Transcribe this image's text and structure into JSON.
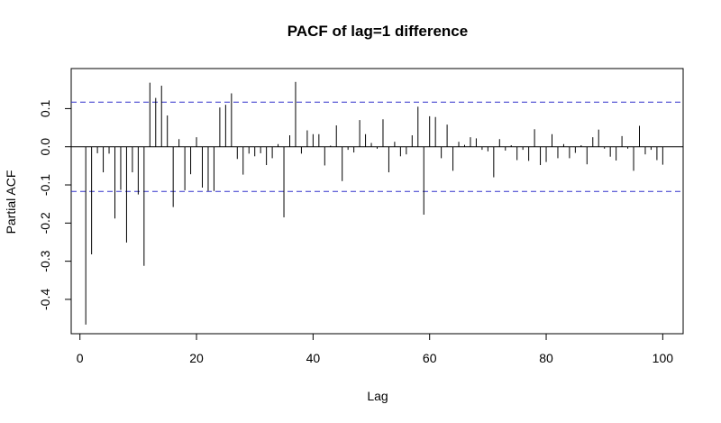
{
  "chart_data": {
    "type": "bar",
    "title": "PACF of lag=1 difference",
    "xlabel": "Lag",
    "ylabel": "Partial ACF",
    "xlim": [
      -1.5,
      103.5
    ],
    "ylim": [
      -0.49,
      0.205
    ],
    "xticks": [
      0,
      20,
      40,
      60,
      80,
      100
    ],
    "yticks": [
      -0.4,
      -0.3,
      -0.2,
      -0.1,
      0.0,
      0.1
    ],
    "ytick_labels": [
      "-0.4",
      "-0.3",
      "-0.2",
      "-0.1",
      "0.0",
      "0.1"
    ],
    "confidence_bound": 0.117,
    "grid": false,
    "colors": {
      "bars": "#000000",
      "confidence": "#3333cc",
      "zero": "#000000"
    },
    "x": [
      1,
      2,
      3,
      4,
      5,
      6,
      7,
      8,
      9,
      10,
      11,
      12,
      13,
      14,
      15,
      16,
      17,
      18,
      19,
      20,
      21,
      22,
      23,
      24,
      25,
      26,
      27,
      28,
      29,
      30,
      31,
      32,
      33,
      34,
      35,
      36,
      37,
      38,
      39,
      40,
      41,
      42,
      43,
      44,
      45,
      46,
      47,
      48,
      49,
      50,
      51,
      52,
      53,
      54,
      55,
      56,
      57,
      58,
      59,
      60,
      61,
      62,
      63,
      64,
      65,
      66,
      67,
      68,
      69,
      70,
      71,
      72,
      73,
      74,
      75,
      76,
      77,
      78,
      79,
      80,
      81,
      82,
      83,
      84,
      85,
      86,
      87,
      88,
      89,
      90,
      91,
      92,
      93,
      94,
      95,
      96,
      97,
      98,
      99,
      100
    ],
    "values": [
      -0.466,
      -0.282,
      -0.017,
      -0.067,
      -0.018,
      -0.188,
      -0.113,
      -0.251,
      -0.067,
      -0.125,
      -0.312,
      0.168,
      0.128,
      0.16,
      0.082,
      -0.158,
      0.02,
      -0.114,
      -0.072,
      0.025,
      -0.107,
      -0.116,
      -0.116,
      0.103,
      0.11,
      0.14,
      -0.032,
      -0.073,
      -0.018,
      -0.025,
      -0.017,
      -0.048,
      -0.03,
      0.007,
      -0.185,
      0.03,
      0.17,
      -0.018,
      0.043,
      0.033,
      0.033,
      -0.049,
      0.003,
      0.056,
      -0.09,
      -0.008,
      -0.015,
      0.07,
      0.033,
      0.01,
      -0.005,
      0.072,
      -0.067,
      0.013,
      -0.025,
      -0.02,
      0.03,
      0.105,
      -0.178,
      0.08,
      0.078,
      -0.03,
      0.058,
      -0.063,
      0.013,
      0.005,
      0.025,
      0.022,
      -0.008,
      -0.012,
      -0.08,
      0.02,
      -0.01,
      0.004,
      -0.035,
      -0.008,
      -0.037,
      0.046,
      -0.048,
      -0.04,
      0.033,
      -0.03,
      0.007,
      -0.03,
      -0.016,
      0.004,
      -0.046,
      0.025,
      0.045,
      -0.005,
      -0.026,
      -0.036,
      0.028,
      -0.005,
      -0.063,
      0.055,
      -0.02,
      -0.008,
      -0.035,
      -0.047
    ]
  }
}
